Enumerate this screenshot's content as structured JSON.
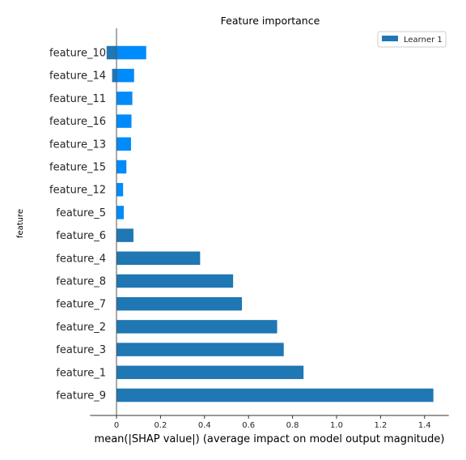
{
  "chart_data": {
    "type": "bar",
    "orientation": "horizontal",
    "title": "Feature importance",
    "xlabel": "mean(|SHAP value|) (average impact on model output magnitude)",
    "ylabel": "feature",
    "xlim": [
      -0.12,
      1.51
    ],
    "xticks": [
      0.0,
      0.2,
      0.4,
      0.6,
      0.8,
      1.0,
      1.2,
      1.4
    ],
    "xtick_labels": [
      "0",
      "0.2",
      "0.4",
      "0.6",
      "0.8",
      "1.0",
      "1.2",
      "1.4"
    ],
    "grid": false,
    "legend": {
      "placement": "top-right",
      "entries": [
        "Learner 1"
      ]
    },
    "colors": {
      "main": "#1f77b4",
      "highlight": "#008bfb"
    },
    "categories": [
      "feature_10",
      "feature_14",
      "feature_11",
      "feature_16",
      "feature_13",
      "feature_15",
      "feature_12",
      "feature_5",
      "feature_6",
      "feature_4",
      "feature_8",
      "feature_7",
      "feature_2",
      "feature_3",
      "feature_1",
      "feature_9"
    ],
    "series": [
      {
        "name": "Learner 1",
        "values": [
          -0.045,
          -0.02,
          0.0,
          0.0,
          0.0,
          0.0,
          0.0,
          0.005,
          0.077,
          0.38,
          0.53,
          0.57,
          0.73,
          0.76,
          0.85,
          1.44
        ]
      },
      {
        "values": [
          0.135,
          0.08,
          0.072,
          0.068,
          0.066,
          0.045,
          0.03,
          0.033,
          0.0,
          0.0,
          0.0,
          0.0,
          0.0,
          0.0,
          0.0,
          0.0
        ]
      }
    ]
  }
}
